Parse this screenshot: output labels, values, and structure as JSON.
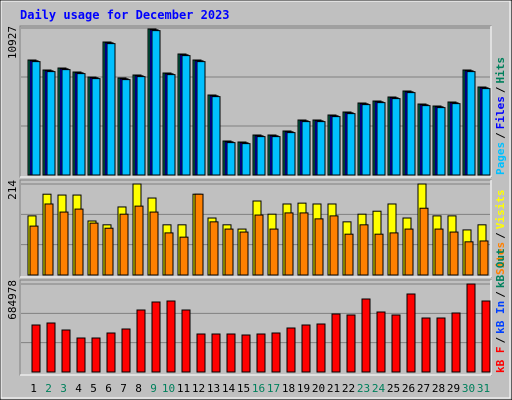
{
  "title": "Daily usage for December 2023",
  "title_color": "#0000ff",
  "legend_separator": "/",
  "categories": [
    "1",
    "2",
    "3",
    "4",
    "5",
    "6",
    "7",
    "8",
    "9",
    "10",
    "11",
    "12",
    "13",
    "14",
    "15",
    "16",
    "17",
    "18",
    "19",
    "20",
    "21",
    "22",
    "23",
    "24",
    "25",
    "26",
    "27",
    "28",
    "29",
    "30",
    "31"
  ],
  "category_colors": [
    "#000000",
    "#00805c",
    "#00805c",
    "#000000",
    "#000000",
    "#000000",
    "#000000",
    "#000000",
    "#00805c",
    "#00805c",
    "#000000",
    "#000000",
    "#000000",
    "#000000",
    "#000000",
    "#00805c",
    "#00805c",
    "#000000",
    "#000000",
    "#000000",
    "#000000",
    "#000000",
    "#00805c",
    "#00805c",
    "#000000",
    "#000000",
    "#000000",
    "#000000",
    "#000000",
    "#00805c",
    "#00805c"
  ],
  "chart_data": [
    {
      "type": "bar",
      "ylim": [
        0,
        10927
      ],
      "yticks": [
        10927
      ],
      "grid_divisions": 3,
      "series": [
        {
          "name": "Pages",
          "color": "#00c0ff",
          "values": [
            8428,
            7685,
            7833,
            7536,
            7164,
            9766,
            7090,
            7313,
            10732,
            7462,
            8874,
            8428,
            5826,
            2407,
            2333,
            2853,
            2853,
            3151,
            3968,
            3968,
            4340,
            4563,
            5232,
            5380,
            5678,
            6124,
            5157,
            5009,
            5306,
            7685,
            6421
          ]
        },
        {
          "name": "Files",
          "color": "#0000ff",
          "values": [
            8488,
            7745,
            7893,
            7596,
            7224,
            9826,
            7150,
            7373,
            10792,
            7522,
            8934,
            8488,
            5886,
            2467,
            2393,
            2913,
            2913,
            3211,
            4028,
            4028,
            4400,
            4623,
            5292,
            5440,
            5738,
            6184,
            5217,
            5069,
            5366,
            7745,
            6481
          ]
        },
        {
          "name": "Hits",
          "color": "#00805c",
          "values": [
            8548,
            7805,
            7953,
            7656,
            7284,
            9886,
            7210,
            7433,
            10852,
            7582,
            8994,
            8548,
            5946,
            2527,
            2453,
            2973,
            2973,
            3271,
            4088,
            4088,
            4460,
            4683,
            5352,
            5500,
            5798,
            6244,
            5277,
            5129,
            5426,
            7805,
            6541
          ]
        }
      ]
    },
    {
      "type": "bar",
      "ylim": [
        0,
        214
      ],
      "yticks": [
        214
      ],
      "grid_divisions": 3,
      "series": [
        {
          "name": "Sites",
          "color": "#ff8000",
          "values": [
            115,
            167,
            148,
            155,
            122,
            110,
            143,
            162,
            148,
            99,
            89,
            190,
            125,
            108,
            101,
            141,
            108,
            146,
            146,
            132,
            139,
            96,
            118,
            96,
            99,
            108,
            157,
            108,
            101,
            78,
            80
          ]
        },
        {
          "name": "Visits",
          "color": "#ffff00",
          "values": [
            139,
            190,
            188,
            188,
            127,
            118,
            160,
            214,
            181,
            118,
            118,
            190,
            134,
            118,
            108,
            174,
            143,
            167,
            169,
            167,
            167,
            125,
            143,
            150,
            167,
            134,
            214,
            139,
            139,
            106,
            118
          ]
        }
      ]
    },
    {
      "type": "bar",
      "ylim": [
        0,
        684978
      ],
      "yticks": [
        684978
      ],
      "grid_divisions": 3,
      "series": [
        {
          "name": "kB F",
          "color": "#ff0000",
          "values": [
            365848,
            381416,
            326928,
            264656,
            264656,
            303576,
            334712,
            482608,
            544880,
            552664,
            482608,
            295792,
            295792,
            295792,
            288008,
            295792,
            303576,
            342496,
            365848,
            373632,
            451472,
            443688,
            568232,
            467040,
            443688,
            607152,
            420336,
            420336,
            459256,
            684978,
            552664
          ]
        },
        {
          "name": "kB In",
          "color": "#0040ff",
          "values": [
            0,
            0,
            0,
            0,
            0,
            0,
            0,
            0,
            0,
            0,
            0,
            0,
            0,
            0,
            0,
            0,
            0,
            0,
            0,
            0,
            0,
            0,
            0,
            0,
            0,
            0,
            0,
            0,
            0,
            0,
            0
          ]
        },
        {
          "name": "kB Out",
          "color": "#00805c",
          "values": [
            0,
            0,
            0,
            0,
            0,
            0,
            0,
            0,
            0,
            0,
            0,
            0,
            0,
            0,
            0,
            0,
            0,
            0,
            0,
            0,
            0,
            0,
            0,
            0,
            0,
            0,
            0,
            0,
            0,
            0,
            0
          ]
        }
      ]
    }
  ]
}
